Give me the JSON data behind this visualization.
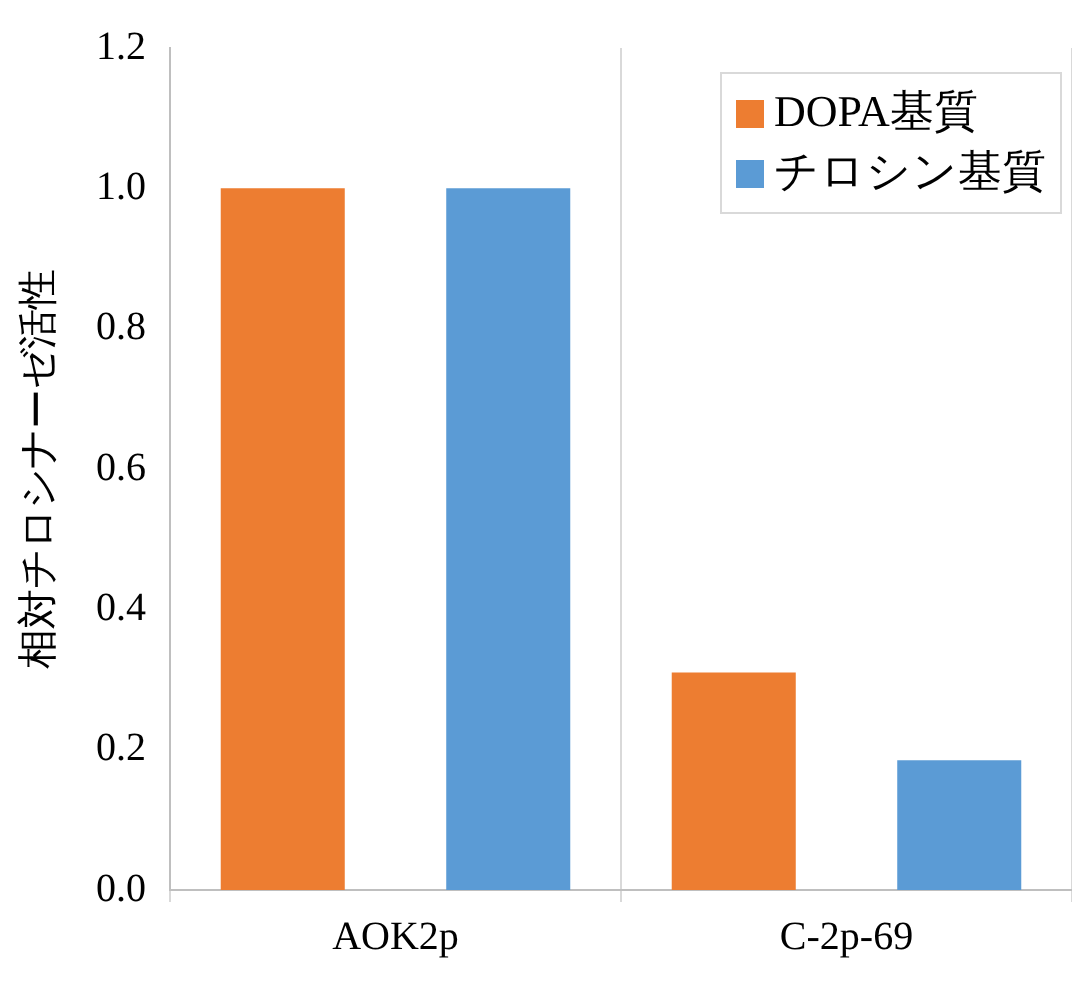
{
  "chart_data": {
    "type": "bar",
    "ylabel": "相対チロシナーゼ活性",
    "categories": [
      "AOK2p",
      "C-2p-69"
    ],
    "series": [
      {
        "name": "DOPA基質",
        "color": "#ed7d31",
        "values": [
          1.0,
          0.31
        ]
      },
      {
        "name": "チロシン基質",
        "color": "#5b9bd5",
        "values": [
          1.0,
          0.185
        ]
      }
    ],
    "ylim": [
      0,
      1.2
    ],
    "yticks": [
      {
        "value": 0,
        "label": "0.0"
      },
      {
        "value": 0.2,
        "label": "0.2"
      },
      {
        "value": 0.4,
        "label": "0.4"
      },
      {
        "value": 0.6,
        "label": "0.6"
      },
      {
        "value": 0.8,
        "label": "0.8"
      },
      {
        "value": 1,
        "label": "1.0"
      },
      {
        "value": 1.2,
        "label": "1.2"
      }
    ],
    "grid": "x",
    "legend": "top right"
  }
}
